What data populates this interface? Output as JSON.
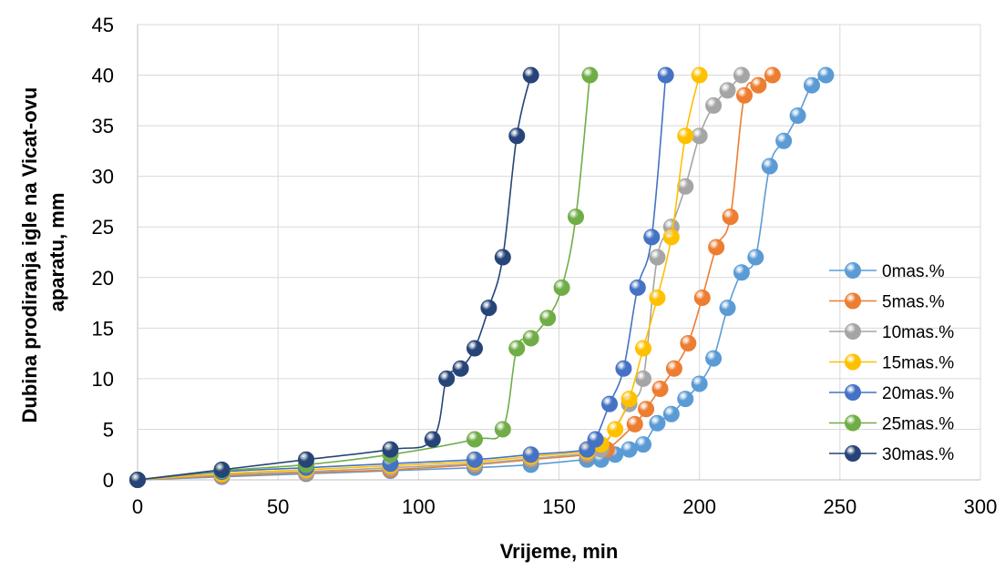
{
  "chart_data": {
    "type": "line",
    "title": "",
    "xlabel": "Vrijeme, min",
    "ylabel_lines": [
      "Dubina prodiranja igle na Vicat-ovu",
      "aparatu, mm"
    ],
    "xlim": [
      0,
      300
    ],
    "ylim": [
      0,
      45
    ],
    "xticks": [
      0,
      50,
      100,
      150,
      200,
      250,
      300
    ],
    "yticks": [
      0,
      5,
      10,
      15,
      20,
      25,
      30,
      35,
      40,
      45
    ],
    "grid": true,
    "legend_position": "right",
    "series": [
      {
        "name": "0mas.%",
        "color": "#5b9bd5",
        "points": [
          [
            0,
            0
          ],
          [
            30,
            0.3
          ],
          [
            60,
            0.6
          ],
          [
            90,
            0.9
          ],
          [
            120,
            1.2
          ],
          [
            140,
            1.5
          ],
          [
            160,
            2.0
          ],
          [
            165,
            2.0
          ],
          [
            170,
            2.5
          ],
          [
            175,
            3.0
          ],
          [
            180,
            3.5
          ],
          [
            185,
            5.6
          ],
          [
            190,
            6.5
          ],
          [
            195,
            8.0
          ],
          [
            200,
            9.5
          ],
          [
            205,
            12.0
          ],
          [
            210,
            17.0
          ],
          [
            215,
            20.5
          ],
          [
            220,
            22.0
          ],
          [
            225,
            31.0
          ],
          [
            230,
            33.5
          ],
          [
            235,
            36.0
          ],
          [
            240,
            39.0
          ],
          [
            245,
            40.0
          ]
        ]
      },
      {
        "name": "5mas.%",
        "color": "#ed7d31",
        "points": [
          [
            0,
            0
          ],
          [
            30,
            0.4
          ],
          [
            60,
            0.7
          ],
          [
            90,
            1.0
          ],
          [
            120,
            1.5
          ],
          [
            140,
            2.0
          ],
          [
            160,
            2.5
          ],
          [
            167,
            3.0
          ],
          [
            177,
            5.5
          ],
          [
            181,
            7.0
          ],
          [
            186,
            9.0
          ],
          [
            191,
            11.0
          ],
          [
            196,
            13.5
          ],
          [
            201,
            18.0
          ],
          [
            206,
            23.0
          ],
          [
            211,
            26.0
          ],
          [
            216,
            38.0
          ],
          [
            221,
            39.0
          ],
          [
            226,
            40.0
          ]
        ]
      },
      {
        "name": "10mas.%",
        "color": "#a5a5a5",
        "points": [
          [
            0,
            0
          ],
          [
            30,
            0.5
          ],
          [
            60,
            0.8
          ],
          [
            90,
            1.2
          ],
          [
            120,
            1.6
          ],
          [
            140,
            2.1
          ],
          [
            160,
            2.6
          ],
          [
            165,
            3.0
          ],
          [
            175,
            7.5
          ],
          [
            180,
            10.0
          ],
          [
            185,
            22.0
          ],
          [
            190,
            25.0
          ],
          [
            195,
            29.0
          ],
          [
            200,
            34.0
          ],
          [
            205,
            37.0
          ],
          [
            210,
            38.5
          ],
          [
            215,
            40.0
          ]
        ]
      },
      {
        "name": "15mas.%",
        "color": "#ffc000",
        "points": [
          [
            0,
            0
          ],
          [
            30,
            0.6
          ],
          [
            60,
            1.0
          ],
          [
            90,
            1.4
          ],
          [
            120,
            1.8
          ],
          [
            140,
            2.3
          ],
          [
            160,
            2.8
          ],
          [
            165,
            3.5
          ],
          [
            170,
            5.0
          ],
          [
            175,
            8.0
          ],
          [
            180,
            13.0
          ],
          [
            185,
            18.0
          ],
          [
            190,
            24.0
          ],
          [
            195,
            34.0
          ],
          [
            200,
            40.0
          ]
        ]
      },
      {
        "name": "20mas.%",
        "color": "#4472c4",
        "points": [
          [
            0,
            0
          ],
          [
            30,
            0.8
          ],
          [
            60,
            1.2
          ],
          [
            90,
            1.6
          ],
          [
            120,
            2.0
          ],
          [
            140,
            2.5
          ],
          [
            160,
            3.0
          ],
          [
            163,
            4.0
          ],
          [
            168,
            7.5
          ],
          [
            173,
            11.0
          ],
          [
            178,
            19.0
          ],
          [
            183,
            24.0
          ],
          [
            188,
            40.0
          ]
        ]
      },
      {
        "name": "25mas.%",
        "color": "#70ad47",
        "points": [
          [
            0,
            0
          ],
          [
            30,
            0.9
          ],
          [
            60,
            1.5
          ],
          [
            90,
            2.5
          ],
          [
            120,
            4.0
          ],
          [
            130,
            5.0
          ],
          [
            135,
            13.0
          ],
          [
            140,
            14.0
          ],
          [
            146,
            16.0
          ],
          [
            151,
            19.0
          ],
          [
            156,
            26.0
          ],
          [
            161,
            40.0
          ]
        ]
      },
      {
        "name": "30mas.%",
        "color": "#264478",
        "points": [
          [
            0,
            0
          ],
          [
            30,
            1.0
          ],
          [
            60,
            2.0
          ],
          [
            90,
            3.0
          ],
          [
            105,
            4.0
          ],
          [
            110,
            10.0
          ],
          [
            115,
            11.0
          ],
          [
            120,
            13.0
          ],
          [
            125,
            17.0
          ],
          [
            130,
            22.0
          ],
          [
            135,
            34.0
          ],
          [
            140,
            40.0
          ]
        ]
      }
    ]
  }
}
